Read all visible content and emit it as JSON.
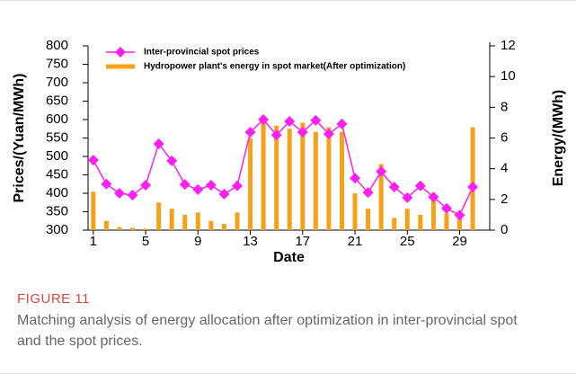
{
  "chart_data": {
    "type": "combo",
    "xlabel": "Date",
    "ylabel": "Prices/(Yuan/MWh)",
    "y2label": "Energy/(MWh)",
    "x": [
      1,
      2,
      3,
      4,
      5,
      6,
      7,
      8,
      9,
      10,
      11,
      12,
      13,
      14,
      15,
      16,
      17,
      18,
      19,
      20,
      21,
      22,
      23,
      24,
      25,
      26,
      27,
      28,
      29,
      30
    ],
    "xlim": [
      0.6,
      31.3
    ],
    "xticks": [
      1,
      5,
      9,
      13,
      17,
      21,
      25,
      29
    ],
    "ylim": [
      300,
      800
    ],
    "yticks": [
      300,
      350,
      400,
      450,
      500,
      550,
      600,
      650,
      700,
      750,
      800
    ],
    "y2lim": [
      0,
      12
    ],
    "y2ticks": [
      0,
      2,
      4,
      6,
      8,
      10,
      12
    ],
    "series": [
      {
        "name": "Inter-provincial spot prices",
        "type": "line",
        "color": "#ff1ff0",
        "values": [
          490,
          425,
          400,
          395,
          422,
          534,
          488,
          424,
          410,
          422,
          398,
          420,
          566,
          600,
          558,
          595,
          566,
          598,
          561,
          588,
          441,
          402,
          459,
          417,
          388,
          420,
          390,
          359,
          341,
          417
        ]
      },
      {
        "name": "Hydropower plant's energy in spot market(After optimization)",
        "type": "bar",
        "axis": "y2",
        "color": "#f5a21b",
        "values": [
          2.5,
          0.6,
          0.2,
          0.15,
          0.1,
          1.8,
          1.4,
          1.0,
          1.15,
          0.6,
          0.4,
          1.15,
          6.0,
          7.0,
          6.8,
          6.6,
          7.0,
          6.4,
          6.7,
          6.4,
          2.4,
          1.4,
          4.3,
          0.8,
          1.4,
          1.0,
          2.1,
          1.1,
          0.75,
          6.7
        ]
      }
    ]
  },
  "caption": {
    "label": "FIGURE 11",
    "text": "Matching analysis of energy allocation after optimization in inter-provincial spot and the spot prices."
  }
}
